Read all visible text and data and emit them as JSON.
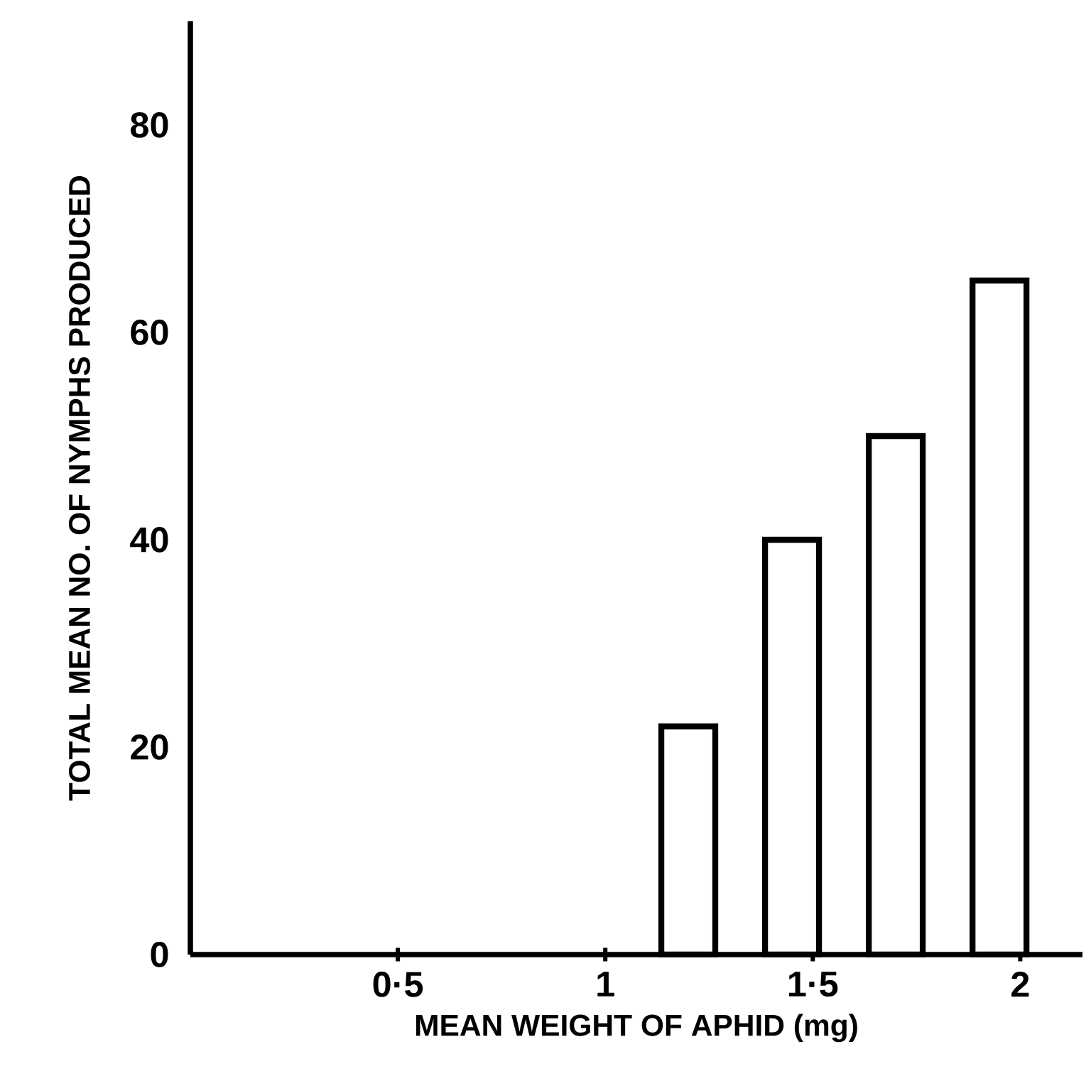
{
  "chart_data": {
    "type": "bar",
    "xlabel": "MEAN WEIGHT OF APHID (mg)",
    "ylabel": "TOTAL MEAN NO. OF NYMPHS PRODUCED",
    "x": [
      1.2,
      1.45,
      1.7,
      1.95
    ],
    "values": [
      22,
      40,
      50,
      65
    ],
    "color": "#000000",
    "xlim": [
      0,
      2.15
    ],
    "ylim": [
      0,
      90
    ],
    "xticks": [
      {
        "value": 0.5,
        "label": "0·5"
      },
      1,
      {
        "value": 1.5,
        "label": "1·5"
      },
      2
    ],
    "yticks": [
      0,
      20,
      40,
      60,
      80
    ]
  }
}
